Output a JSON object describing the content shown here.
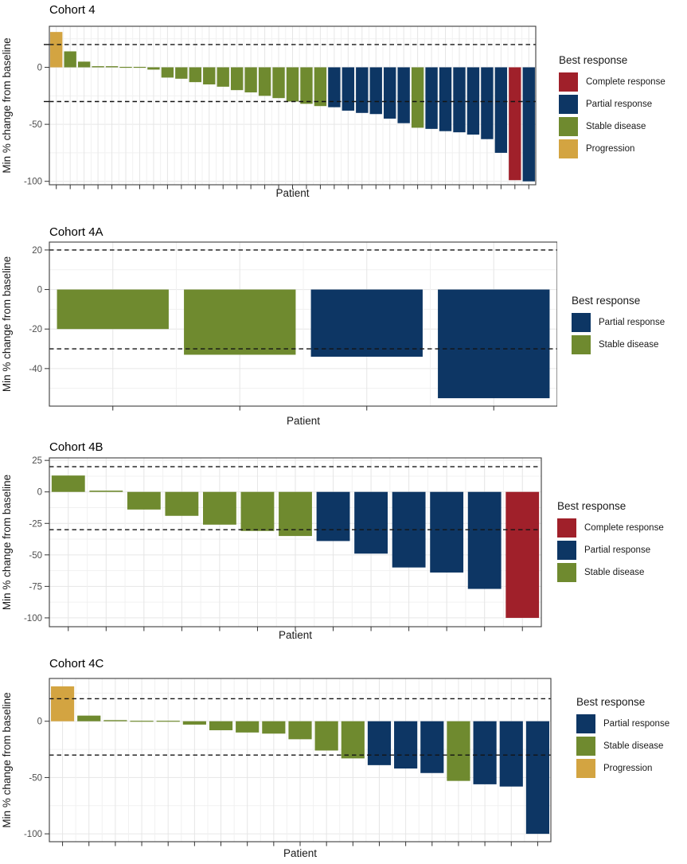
{
  "legend": {
    "title": "Best response",
    "labels": {
      "complete_response": "Complete response",
      "partial_response": "Partial response",
      "stable_disease": "Stable disease",
      "progression": "Progression"
    }
  },
  "colors": {
    "complete_response": "#A0202A",
    "partial_response": "#0D3664",
    "stable_disease": "#6F8A2F",
    "progression": "#D3A441"
  },
  "chart_data": [
    {
      "type": "bar",
      "title": "Cohort 4",
      "xlabel": "Patient",
      "ylabel": "Min % change from baseline",
      "ylim": [
        -103,
        36
      ],
      "yticks": [
        0,
        -50,
        -100
      ],
      "ytick_labels": [
        "0",
        "-50",
        "-100"
      ],
      "yticks_minor": [
        25,
        -25,
        -75
      ],
      "ref_lines": [
        20,
        -30
      ],
      "unlabeled_axis_ticks": [
        20,
        -30
      ],
      "grid": true,
      "legend_position": "right",
      "legend_items": [
        "complete_response",
        "partial_response",
        "stable_disease",
        "progression"
      ],
      "n_patients": 35,
      "patients": [
        {
          "value": 31,
          "response": "progression"
        },
        {
          "value": 14,
          "response": "stable_disease"
        },
        {
          "value": 5,
          "response": "stable_disease"
        },
        {
          "value": 1,
          "response": "stable_disease"
        },
        {
          "value": 1,
          "response": "stable_disease"
        },
        {
          "value": 0,
          "response": "stable_disease"
        },
        {
          "value": 0,
          "response": "stable_disease"
        },
        {
          "value": -2,
          "response": "stable_disease"
        },
        {
          "value": -9,
          "response": "stable_disease"
        },
        {
          "value": -10,
          "response": "stable_disease"
        },
        {
          "value": -13,
          "response": "stable_disease"
        },
        {
          "value": -15,
          "response": "stable_disease"
        },
        {
          "value": -17,
          "response": "stable_disease"
        },
        {
          "value": -20,
          "response": "stable_disease"
        },
        {
          "value": -22,
          "response": "stable_disease"
        },
        {
          "value": -25,
          "response": "stable_disease"
        },
        {
          "value": -27,
          "response": "stable_disease"
        },
        {
          "value": -30,
          "response": "stable_disease"
        },
        {
          "value": -32,
          "response": "stable_disease"
        },
        {
          "value": -34,
          "response": "stable_disease"
        },
        {
          "value": -35,
          "response": "partial_response"
        },
        {
          "value": -38,
          "response": "partial_response"
        },
        {
          "value": -40,
          "response": "partial_response"
        },
        {
          "value": -41,
          "response": "partial_response"
        },
        {
          "value": -45,
          "response": "partial_response"
        },
        {
          "value": -49,
          "response": "partial_response"
        },
        {
          "value": -53,
          "response": "stable_disease"
        },
        {
          "value": -54,
          "response": "partial_response"
        },
        {
          "value": -56,
          "response": "partial_response"
        },
        {
          "value": -57,
          "response": "partial_response"
        },
        {
          "value": -59,
          "response": "partial_response"
        },
        {
          "value": -63,
          "response": "partial_response"
        },
        {
          "value": -75,
          "response": "partial_response"
        },
        {
          "value": -99,
          "response": "complete_response"
        },
        {
          "value": -100,
          "response": "partial_response"
        }
      ]
    },
    {
      "type": "bar",
      "title": "Cohort 4A",
      "xlabel": "Patient",
      "ylabel": "Min % change from baseline",
      "ylim": [
        -59,
        24
      ],
      "yticks": [
        20,
        0,
        -20,
        -40
      ],
      "ytick_labels": [
        "20",
        "0",
        "-20",
        "-40"
      ],
      "yticks_minor": [
        10,
        -10,
        -30,
        -50
      ],
      "ref_lines": [
        20,
        -30
      ],
      "unlabeled_axis_ticks": [],
      "grid": true,
      "legend_position": "right",
      "legend_items": [
        "partial_response",
        "stable_disease"
      ],
      "n_patients": 4,
      "patients": [
        {
          "value": -20,
          "response": "stable_disease"
        },
        {
          "value": -33,
          "response": "stable_disease"
        },
        {
          "value": -34,
          "response": "partial_response"
        },
        {
          "value": -55,
          "response": "partial_response"
        }
      ]
    },
    {
      "type": "bar",
      "title": "Cohort 4B",
      "xlabel": "Patient",
      "ylabel": "Min % change from baseline",
      "ylim": [
        -107,
        27
      ],
      "yticks": [
        25,
        0,
        -25,
        -50,
        -75,
        -100
      ],
      "ytick_labels": [
        "25",
        "0",
        "-25",
        "-50",
        "-75",
        "-100"
      ],
      "yticks_minor": [
        12.5,
        -12.5,
        -37.5,
        -62.5,
        -87.5
      ],
      "ref_lines": [
        20,
        -30
      ],
      "unlabeled_axis_ticks": [],
      "grid": true,
      "legend_position": "right",
      "legend_items": [
        "complete_response",
        "partial_response",
        "stable_disease"
      ],
      "n_patients": 13,
      "patients": [
        {
          "value": 13,
          "response": "stable_disease"
        },
        {
          "value": 1,
          "response": "stable_disease"
        },
        {
          "value": -14,
          "response": "stable_disease"
        },
        {
          "value": -19,
          "response": "stable_disease"
        },
        {
          "value": -26,
          "response": "stable_disease"
        },
        {
          "value": -31,
          "response": "stable_disease"
        },
        {
          "value": -35,
          "response": "stable_disease"
        },
        {
          "value": -39,
          "response": "partial_response"
        },
        {
          "value": -49,
          "response": "partial_response"
        },
        {
          "value": -60,
          "response": "partial_response"
        },
        {
          "value": -64,
          "response": "partial_response"
        },
        {
          "value": -77,
          "response": "partial_response"
        },
        {
          "value": -100,
          "response": "complete_response"
        }
      ]
    },
    {
      "type": "bar",
      "title": "Cohort 4C",
      "xlabel": "Patient",
      "ylabel": "Min % change from baseline",
      "ylim": [
        -107,
        38
      ],
      "yticks": [
        0,
        -50,
        -100
      ],
      "ytick_labels": [
        "0",
        "-50",
        "-100"
      ],
      "yticks_minor": [
        25,
        -25,
        -75
      ],
      "ref_lines": [
        20,
        -30
      ],
      "unlabeled_axis_ticks": [],
      "grid": true,
      "legend_position": "right",
      "legend_items": [
        "partial_response",
        "stable_disease",
        "progression"
      ],
      "n_patients": 19,
      "patients": [
        {
          "value": 31,
          "response": "progression"
        },
        {
          "value": 5,
          "response": "stable_disease"
        },
        {
          "value": 1,
          "response": "stable_disease"
        },
        {
          "value": 0,
          "response": "stable_disease"
        },
        {
          "value": 0,
          "response": "stable_disease"
        },
        {
          "value": -3,
          "response": "stable_disease"
        },
        {
          "value": -8,
          "response": "stable_disease"
        },
        {
          "value": -10,
          "response": "stable_disease"
        },
        {
          "value": -11,
          "response": "stable_disease"
        },
        {
          "value": -16,
          "response": "stable_disease"
        },
        {
          "value": -26,
          "response": "stable_disease"
        },
        {
          "value": -33,
          "response": "stable_disease"
        },
        {
          "value": -39,
          "response": "partial_response"
        },
        {
          "value": -42,
          "response": "partial_response"
        },
        {
          "value": -46,
          "response": "partial_response"
        },
        {
          "value": -53,
          "response": "stable_disease"
        },
        {
          "value": -56,
          "response": "partial_response"
        },
        {
          "value": -58,
          "response": "partial_response"
        },
        {
          "value": -100,
          "response": "partial_response"
        }
      ]
    }
  ]
}
